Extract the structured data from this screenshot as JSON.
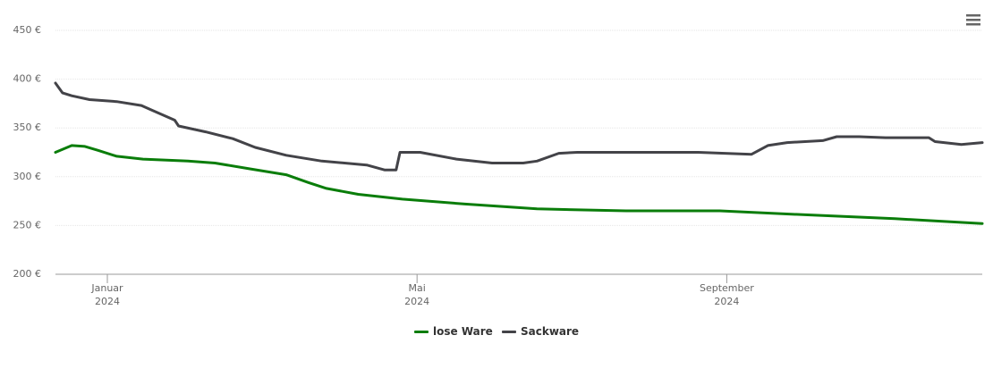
{
  "chart_data": {
    "type": "line",
    "xlim": [
      0.33,
      12.3
    ],
    "xticks": [
      {
        "value": 1,
        "label": "Januar\n2024"
      },
      {
        "value": 5,
        "label": "Mai\n2024"
      },
      {
        "value": 9,
        "label": "September\n2024"
      }
    ],
    "ylim": [
      200,
      450
    ],
    "yticks": [
      {
        "value": 200,
        "label": "200 €"
      },
      {
        "value": 250,
        "label": "250 €"
      },
      {
        "value": 300,
        "label": "300 €"
      },
      {
        "value": 350,
        "label": "350 €"
      },
      {
        "value": 400,
        "label": "400 €"
      },
      {
        "value": 450,
        "label": "450 €"
      }
    ],
    "grid": true,
    "series": [
      {
        "name": "lose Ware",
        "color": "#0a7d0a",
        "x": [
          0.33,
          0.54,
          0.71,
          0.88,
          1.12,
          1.46,
          2.04,
          2.39,
          2.85,
          3.31,
          3.6,
          3.83,
          4.24,
          4.81,
          5.62,
          6.55,
          7.7,
          8.91,
          10.01,
          11.17,
          12.3
        ],
        "values": [
          325,
          332,
          331,
          327,
          321,
          318,
          316,
          314,
          308,
          302,
          294,
          288,
          282,
          277,
          272,
          267,
          265,
          265,
          261,
          257,
          252
        ]
      },
      {
        "name": "Sackware",
        "color": "#434348",
        "x": [
          0.33,
          0.42,
          0.54,
          0.77,
          1.12,
          1.44,
          1.58,
          1.87,
          1.92,
          2.27,
          2.62,
          2.91,
          3.31,
          3.77,
          4.35,
          4.58,
          4.73,
          4.78,
          5.04,
          5.51,
          5.97,
          6.37,
          6.55,
          6.83,
          7.07,
          7.7,
          8.63,
          9.32,
          9.53,
          9.78,
          10.24,
          10.42,
          10.71,
          11.05,
          11.61,
          11.69,
          12.03,
          12.3
        ],
        "values": [
          396,
          386,
          383,
          379,
          377,
          373,
          368,
          358,
          352,
          346,
          339,
          330,
          322,
          316,
          312,
          307,
          307,
          325,
          325,
          318,
          314,
          314,
          316,
          324,
          325,
          325,
          325,
          323,
          332,
          335,
          337,
          341,
          341,
          340,
          340,
          336,
          333,
          335
        ]
      }
    ]
  }
}
